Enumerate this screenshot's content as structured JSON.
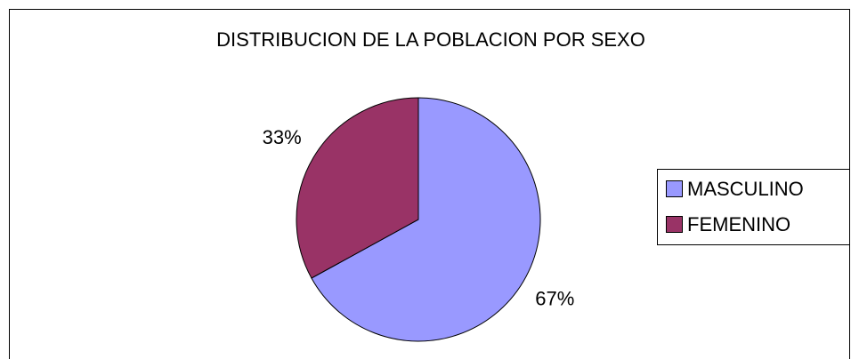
{
  "chart_data": {
    "type": "pie",
    "title": "DISTRIBUCION DE LA POBLACION POR SEXO",
    "categories": [
      "MASCULINO",
      "FEMENINO"
    ],
    "values": [
      67,
      33
    ],
    "value_labels": [
      "67%",
      "33%"
    ],
    "colors": [
      "#9999ff",
      "#993366"
    ],
    "legend": "right"
  }
}
